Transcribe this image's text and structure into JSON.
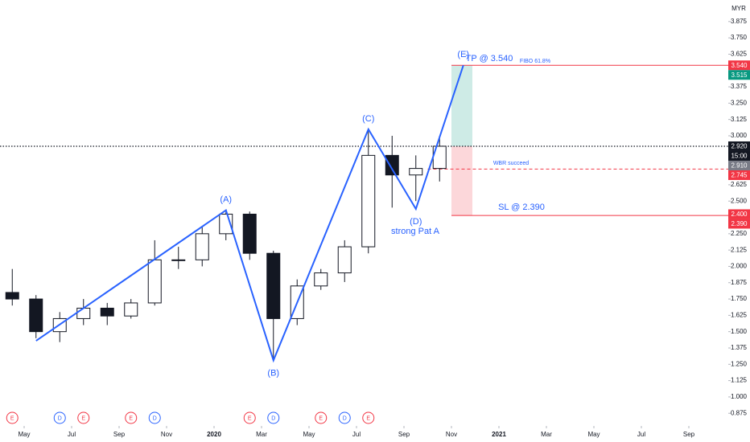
{
  "chart_data": {
    "type": "candlestick",
    "currency": "MYR",
    "x": [
      "2019-04",
      "2019-05",
      "2019-06",
      "2019-07",
      "2019-08",
      "2019-09",
      "2019-10",
      "2019-11",
      "2019-12",
      "2020-01",
      "2020-02",
      "2020-03",
      "2020-04",
      "2020-05",
      "2020-06",
      "2020-07",
      "2020-08",
      "2020-09",
      "2020-10"
    ],
    "open": [
      1.8,
      1.75,
      1.5,
      1.6,
      1.68,
      1.62,
      1.72,
      2.05,
      2.05,
      2.25,
      2.4,
      2.1,
      1.6,
      1.85,
      1.95,
      2.15,
      2.85,
      2.7,
      2.75
    ],
    "high": [
      1.98,
      1.78,
      1.65,
      1.75,
      1.72,
      1.75,
      2.2,
      2.15,
      2.3,
      2.43,
      2.42,
      2.12,
      1.9,
      1.98,
      2.2,
      3.05,
      3.0,
      2.85,
      3.0
    ],
    "low": [
      1.7,
      1.45,
      1.42,
      1.55,
      1.55,
      1.6,
      1.7,
      1.98,
      2.0,
      2.2,
      2.05,
      1.28,
      1.55,
      1.82,
      1.88,
      2.1,
      2.45,
      2.5,
      2.65
    ],
    "close": [
      1.75,
      1.5,
      1.6,
      1.68,
      1.62,
      1.72,
      2.05,
      2.05,
      2.25,
      2.4,
      2.1,
      1.6,
      1.85,
      1.95,
      2.15,
      2.85,
      2.7,
      2.75,
      2.92
    ],
    "up_color": "#ffffff",
    "down_color": "#131722",
    "ylim": [
      0.778,
      4.04
    ],
    "yticks": [
      0.875,
      {
        "value": 1.0,
        "label": "1.000"
      },
      1.125,
      {
        "value": 1.25,
        "label": "1.250"
      },
      1.375,
      {
        "value": 1.5,
        "label": "1.500"
      },
      1.625,
      {
        "value": 1.75,
        "label": "1.750"
      },
      1.875,
      {
        "value": 2.0,
        "label": "2.000"
      },
      2.125,
      {
        "value": 2.25,
        "label": "2.250"
      },
      {
        "value": 2.5,
        "label": "2.500"
      },
      2.625,
      {
        "value": 3.0,
        "label": "3.000"
      },
      3.125,
      {
        "value": 3.25,
        "label": "3.250"
      },
      3.375,
      3.625,
      {
        "value": 3.75,
        "label": "3.750"
      },
      3.875
    ],
    "xticks": [
      {
        "value": "2019-05",
        "label": "May"
      },
      {
        "value": "2019-07",
        "label": "Jul"
      },
      {
        "value": "2019-09",
        "label": "Sep"
      },
      {
        "value": "2019-11",
        "label": "Nov"
      },
      {
        "value": "2020-01",
        "label": "2020"
      },
      {
        "value": "2020-03",
        "label": "Mar"
      },
      {
        "value": "2020-05",
        "label": "May"
      },
      {
        "value": "2020-07",
        "label": "Jul"
      },
      {
        "value": "2020-09",
        "label": "Sep"
      },
      {
        "value": "2020-11",
        "label": "Nov"
      },
      {
        "value": "2021-01",
        "label": "2021"
      },
      {
        "value": "2021-03",
        "label": "Mar"
      },
      {
        "value": "2021-05",
        "label": "May"
      },
      {
        "value": "2021-07",
        "label": "Jul"
      },
      {
        "value": "2021-09",
        "label": "Sep"
      }
    ],
    "waves": {
      "x": [
        "2019-05",
        "2020-01",
        "2020-03",
        "2020-07",
        "2020-09",
        "2020-11"
      ],
      "values": [
        1.43,
        2.43,
        1.28,
        3.05,
        2.44,
        3.54
      ],
      "labels": [
        null,
        "(A)",
        "(B)",
        "(C)",
        "(D)",
        "(E)"
      ],
      "color": "#2962ff"
    },
    "levels": [
      {
        "value": 3.54,
        "from": "2020-11",
        "color": "#f23645",
        "style": "solid"
      },
      {
        "value": 2.39,
        "from": "2020-11",
        "color": "#f23645",
        "style": "solid"
      },
      {
        "value": 2.745,
        "from": "2020-10",
        "color": "#f23645",
        "style": "dashed"
      },
      {
        "value": 2.92,
        "color": "#131722",
        "style": "dotted"
      }
    ],
    "position": {
      "from": "2020-11",
      "entry": 2.92,
      "target": 3.54,
      "stop": 2.39
    },
    "annotations": [
      {
        "text": "TP @ 3.540",
        "size": 11
      },
      {
        "text": "FIBO 61.8%",
        "size": 7
      },
      {
        "text": "WBR succeed",
        "size": 7
      },
      {
        "text": "SL @ 2.390",
        "size": 11
      },
      {
        "text": "strong Pat A",
        "size": 11
      }
    ],
    "price_labels": [
      {
        "value": 3.54,
        "label": "3.540",
        "color": "#f23645"
      },
      {
        "value": 3.515,
        "label": "3.515",
        "color": "#089981"
      },
      {
        "value": 2.92,
        "label": "2.920",
        "color": "#131722",
        "countdown": "15:00"
      },
      {
        "value": 2.91,
        "label": "2.910",
        "color": "#787b86"
      },
      {
        "value": 2.745,
        "label": "2.745",
        "color": "#f23645"
      },
      {
        "value": 2.4,
        "label": "2.400",
        "color": "#f23645"
      },
      {
        "value": 2.39,
        "label": "2.390",
        "color": "#f23645"
      }
    ],
    "events": [
      {
        "x": "2019-04",
        "label": "E",
        "color": "#f23645"
      },
      {
        "x": "2019-06",
        "label": "D",
        "color": "#2962ff"
      },
      {
        "x": "2019-07",
        "label": "E",
        "color": "#f23645"
      },
      {
        "x": "2019-09",
        "label": "E",
        "color": "#f23645"
      },
      {
        "x": "2019-10",
        "label": "D",
        "color": "#2962ff"
      },
      {
        "x": "2020-02",
        "label": "E",
        "color": "#f23645"
      },
      {
        "x": "2020-03",
        "label": "D",
        "color": "#2962ff"
      },
      {
        "x": "2020-05",
        "label": "E",
        "color": "#f23645"
      },
      {
        "x": "2020-06",
        "label": "D",
        "color": "#2962ff"
      },
      {
        "x": "2020-07",
        "label": "E",
        "color": "#f23645"
      }
    ]
  }
}
